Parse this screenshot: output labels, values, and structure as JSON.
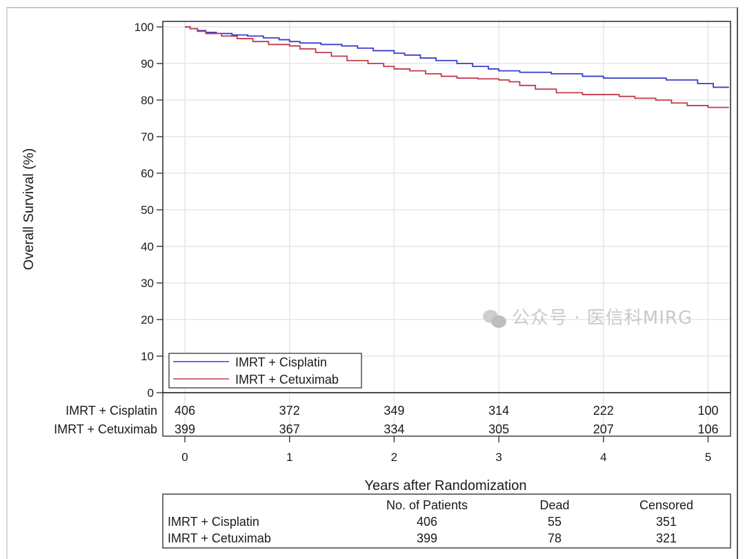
{
  "chart_data": {
    "type": "line",
    "subtype": "kaplan-meier step",
    "ylabel": "Overall Survival (%)",
    "xlabel": "Years after Randomization",
    "xlim": [
      -0.2,
      5.2
    ],
    "ylim": [
      0,
      100
    ],
    "xticks": [
      0,
      1,
      2,
      3,
      4,
      5
    ],
    "yticks": [
      0,
      10,
      20,
      30,
      40,
      50,
      60,
      70,
      80,
      90,
      100
    ],
    "grid": true,
    "legend": {
      "placement": "bottom-left",
      "entries": [
        "IMRT + Cisplatin",
        "IMRT + Cetuximab"
      ]
    },
    "series": [
      {
        "name": "IMRT + Cisplatin",
        "color": "#3a3acc",
        "x": [
          0,
          0.05,
          0.12,
          0.2,
          0.3,
          0.45,
          0.6,
          0.75,
          0.9,
          1.0,
          1.1,
          1.3,
          1.5,
          1.65,
          1.8,
          2.0,
          2.1,
          2.25,
          2.4,
          2.6,
          2.75,
          2.9,
          3.0,
          3.2,
          3.5,
          3.8,
          4.0,
          4.3,
          4.6,
          4.9,
          5.05,
          5.2
        ],
        "y": [
          100,
          99.5,
          99,
          98.5,
          98.2,
          97.8,
          97.5,
          97.0,
          96.5,
          96.0,
          95.6,
          95.2,
          94.8,
          94.2,
          93.5,
          92.8,
          92.3,
          91.5,
          90.8,
          90.0,
          89.2,
          88.5,
          88.0,
          87.6,
          87.2,
          86.5,
          86.0,
          86.0,
          85.5,
          84.5,
          83.5,
          83.5
        ]
      },
      {
        "name": "IMRT + Cetuximab",
        "color": "#c0394a",
        "x": [
          0,
          0.05,
          0.12,
          0.2,
          0.35,
          0.5,
          0.65,
          0.8,
          1.0,
          1.1,
          1.25,
          1.4,
          1.55,
          1.75,
          1.9,
          2.0,
          2.15,
          2.3,
          2.45,
          2.6,
          2.8,
          3.0,
          3.1,
          3.2,
          3.35,
          3.55,
          3.8,
          4.0,
          4.15,
          4.3,
          4.5,
          4.65,
          4.8,
          5.0,
          5.2
        ],
        "y": [
          100,
          99.5,
          98.8,
          98.2,
          97.5,
          96.8,
          96.0,
          95.2,
          94.8,
          94.0,
          93.0,
          92.0,
          90.8,
          90.0,
          89.2,
          88.5,
          88.0,
          87.2,
          86.5,
          86.0,
          85.8,
          85.5,
          85.0,
          84.0,
          83.0,
          82.0,
          81.5,
          81.5,
          81.0,
          80.5,
          80.0,
          79.2,
          78.5,
          78.0,
          78.0
        ]
      }
    ],
    "at_risk": {
      "rows": [
        {
          "label": "IMRT + Cisplatin",
          "values": [
            "406",
            "372",
            "349",
            "314",
            "222",
            "100"
          ]
        },
        {
          "label": "IMRT + Cetuximab",
          "values": [
            "399",
            "367",
            "334",
            "305",
            "207",
            "106"
          ]
        }
      ]
    },
    "summary_table": {
      "headers": [
        "No. of Patients",
        "Dead",
        "Censored"
      ],
      "rows": [
        {
          "label": "IMRT + Cisplatin",
          "values": [
            "406",
            "55",
            "351"
          ]
        },
        {
          "label": "IMRT + Cetuximab",
          "values": [
            "399",
            "78",
            "321"
          ]
        }
      ]
    }
  },
  "watermark": {
    "text": "公众号 · 医信科MIRG",
    "icon": "wechat-icon"
  }
}
